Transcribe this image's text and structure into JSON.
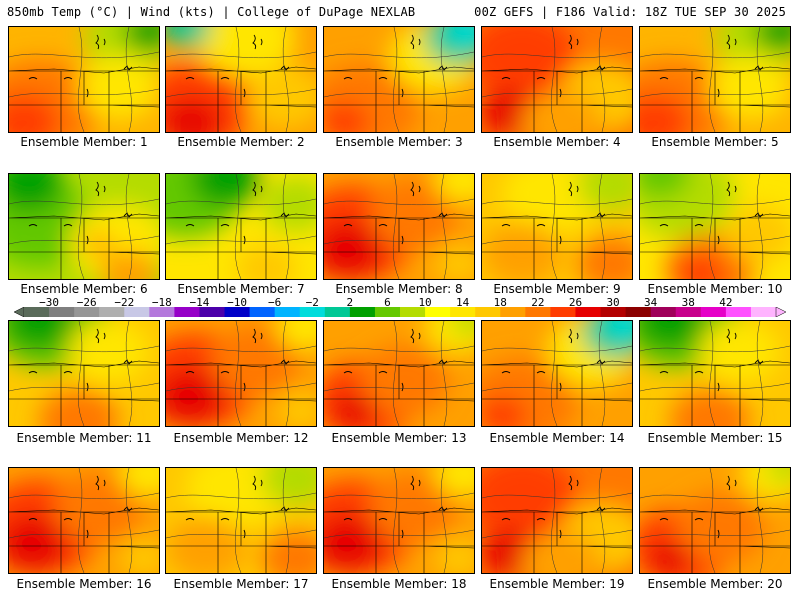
{
  "header": {
    "left": "850mb Temp (°C) | Wind (kts) | College of DuPage NEXLAB",
    "right": "00Z GEFS | F186 Valid: 18Z TUE SEP 30 2025"
  },
  "colorbar": {
    "tick_labels": [
      "−30",
      "−26",
      "−22",
      "−18",
      "−14",
      "−10",
      "−6",
      "−2",
      "2",
      "6",
      "10",
      "14",
      "18",
      "22",
      "26",
      "30",
      "34",
      "38",
      "42"
    ],
    "colors": [
      "#5a6b5a",
      "#7f7f7f",
      "#969696",
      "#afafaf",
      "#c8c8e6",
      "#b478dc",
      "#9600c8",
      "#4b00aa",
      "#0000c8",
      "#0064ff",
      "#00b4ff",
      "#00dcdc",
      "#00c896",
      "#00a000",
      "#64c800",
      "#b4dc00",
      "#ffff00",
      "#ffe600",
      "#ffc800",
      "#ffa000",
      "#ff7800",
      "#ff3c00",
      "#e60000",
      "#b40000",
      "#8c0000",
      "#a0005a",
      "#c8008c",
      "#e600c8",
      "#ff50ff",
      "#ffb4ff"
    ]
  },
  "panels": [
    {
      "label": "Ensemble Member: 1",
      "scheme": "warm-green-ne"
    },
    {
      "label": "Ensemble Member: 2",
      "scheme": "warm-sw-red"
    },
    {
      "label": "Ensemble Member: 3",
      "scheme": "warm-cyan-ne"
    },
    {
      "label": "Ensemble Member: 4",
      "scheme": "hot-north"
    },
    {
      "label": "Ensemble Member: 5",
      "scheme": "warm-green-ne"
    },
    {
      "label": "Ensemble Member: 6",
      "scheme": "cool-green"
    },
    {
      "label": "Ensemble Member: 7",
      "scheme": "cool-yellow"
    },
    {
      "label": "Ensemble Member: 8",
      "scheme": "hot-west"
    },
    {
      "label": "Ensemble Member: 9",
      "scheme": "warm-yellow"
    },
    {
      "label": "Ensemble Member: 10",
      "scheme": "cool-yellow-se-red"
    },
    {
      "label": "Ensemble Member: 11",
      "scheme": "cool-green-top"
    },
    {
      "label": "Ensemble Member: 12",
      "scheme": "hot-west"
    },
    {
      "label": "Ensemble Member: 13",
      "scheme": "warm-red-sw"
    },
    {
      "label": "Ensemble Member: 14",
      "scheme": "warm-cyan-ne"
    },
    {
      "label": "Ensemble Member: 15",
      "scheme": "cool-green-top"
    },
    {
      "label": "Ensemble Member: 16",
      "scheme": "hot-west"
    },
    {
      "label": "Ensemble Member: 17",
      "scheme": "warm-yellow"
    },
    {
      "label": "Ensemble Member: 18",
      "scheme": "hot-west"
    },
    {
      "label": "Ensemble Member: 19",
      "scheme": "hot-north"
    },
    {
      "label": "Ensemble Member: 20",
      "scheme": "warm-red-sw"
    }
  ]
}
